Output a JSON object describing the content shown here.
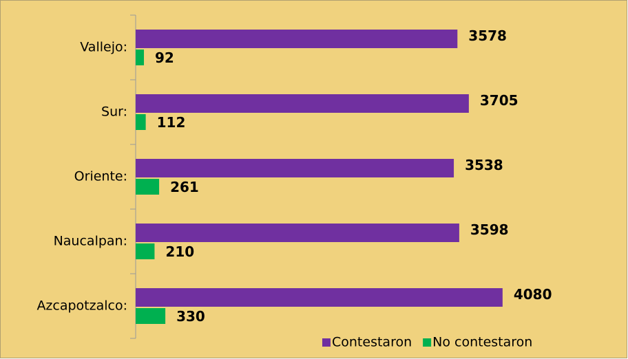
{
  "chart_data": {
    "type": "bar",
    "orientation": "horizontal",
    "categories": [
      "Vallejo:",
      "Sur:",
      "Oriente:",
      "Naucalpan:",
      "Azcapotzalco:"
    ],
    "series": [
      {
        "name": "Contestaron",
        "color": "#7030a0",
        "values": [
          3578,
          3705,
          3538,
          3598,
          4080
        ]
      },
      {
        "name": "No contestaron",
        "color": "#00b050",
        "values": [
          92,
          112,
          261,
          210,
          330
        ]
      }
    ],
    "xlim": [
      0,
      5000
    ],
    "legend": "bottom"
  }
}
